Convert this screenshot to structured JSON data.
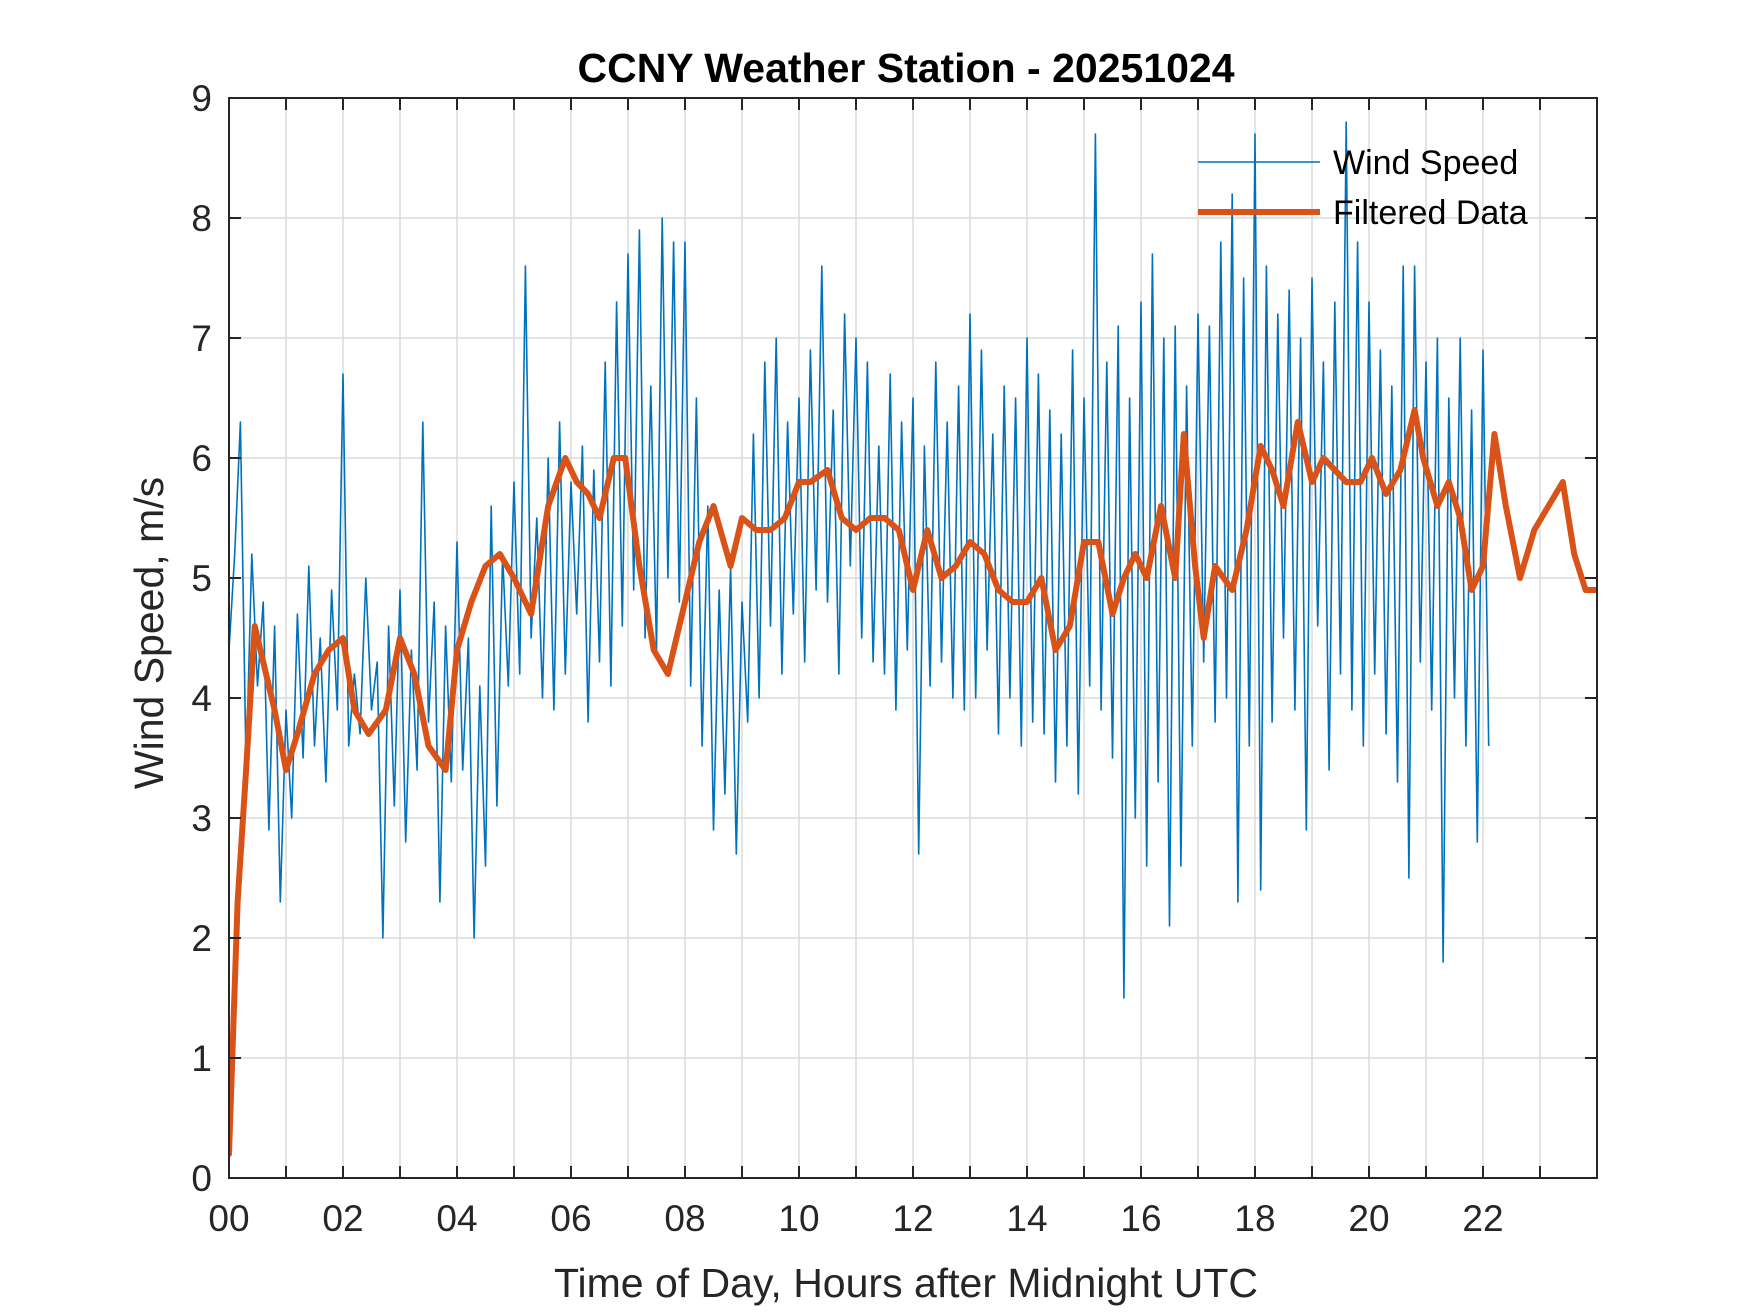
{
  "chart_data": {
    "type": "line",
    "title": "CCNY Weather Station - 20251024",
    "xlabel": "Time of Day, Hours after Midnight UTC",
    "ylabel": "Wind Speed, m/s",
    "xlim": [
      0,
      24
    ],
    "ylim": [
      0,
      9
    ],
    "x_ticks": [
      0,
      2,
      4,
      6,
      8,
      10,
      12,
      14,
      16,
      18,
      20,
      22
    ],
    "x_tick_labels": [
      "00",
      "02",
      "04",
      "06",
      "08",
      "10",
      "12",
      "14",
      "16",
      "18",
      "20",
      "22"
    ],
    "x_minor_grid": [
      1,
      3,
      5,
      7,
      9,
      11,
      13,
      15,
      17,
      19,
      21,
      23
    ],
    "y_ticks": [
      0,
      1,
      2,
      3,
      4,
      5,
      6,
      7,
      8,
      9
    ],
    "y_tick_labels": [
      "0",
      "1",
      "2",
      "3",
      "4",
      "5",
      "6",
      "7",
      "8",
      "9"
    ],
    "grid": true,
    "legend_position": "top-right",
    "series": [
      {
        "name": "Wind Speed",
        "color": "#0072BD",
        "x_start": 0,
        "x_step": 0.1,
        "values": [
          4.4,
          5.2,
          6.3,
          3.4,
          5.2,
          4.1,
          4.8,
          2.9,
          4.6,
          2.3,
          3.9,
          3.0,
          4.7,
          3.5,
          5.1,
          3.6,
          4.5,
          3.3,
          4.9,
          3.9,
          6.7,
          3.6,
          4.2,
          3.7,
          5.0,
          3.9,
          4.3,
          2.0,
          4.6,
          3.1,
          4.9,
          2.8,
          4.4,
          3.4,
          6.3,
          3.8,
          4.8,
          2.3,
          4.6,
          3.3,
          5.3,
          3.4,
          4.5,
          2.0,
          4.1,
          2.6,
          5.6,
          3.1,
          5.2,
          4.1,
          5.8,
          4.2,
          7.6,
          4.5,
          5.5,
          4.0,
          6.0,
          3.9,
          6.3,
          4.2,
          5.8,
          4.7,
          6.1,
          3.8,
          5.9,
          4.3,
          6.8,
          4.1,
          7.3,
          4.6,
          7.7,
          4.9,
          7.9,
          4.5,
          6.6,
          4.4,
          8.0,
          5.0,
          7.8,
          4.8,
          7.8,
          4.1,
          6.5,
          3.6,
          5.6,
          2.9,
          4.9,
          3.2,
          5.1,
          2.7,
          4.8,
          3.8,
          6.2,
          4.0,
          6.8,
          4.6,
          7.0,
          4.2,
          6.3,
          4.7,
          6.5,
          4.3,
          6.9,
          4.9,
          7.6,
          4.8,
          6.4,
          4.2,
          7.2,
          5.1,
          7.0,
          4.5,
          6.8,
          4.3,
          6.1,
          4.2,
          6.7,
          3.9,
          6.3,
          4.4,
          6.5,
          2.7,
          6.1,
          4.1,
          6.8,
          4.3,
          6.3,
          4.0,
          6.6,
          3.9,
          7.2,
          4.0,
          6.9,
          4.4,
          6.2,
          3.7,
          6.6,
          4.0,
          6.5,
          3.6,
          7.0,
          3.8,
          6.7,
          3.7,
          6.4,
          3.3,
          6.2,
          3.6,
          6.9,
          3.2,
          6.5,
          4.1,
          8.7,
          3.9,
          6.8,
          3.5,
          7.1,
          1.5,
          6.5,
          3.0,
          7.3,
          2.6,
          7.7,
          3.3,
          7.0,
          2.1,
          7.1,
          2.6,
          6.6,
          3.6,
          7.2,
          4.3,
          7.1,
          3.8,
          7.8,
          4.0,
          8.2,
          2.3,
          7.5,
          3.6,
          8.7,
          2.4,
          7.6,
          3.8,
          7.2,
          4.5,
          7.4,
          3.9,
          7.0,
          2.9,
          7.5,
          4.6,
          6.8,
          3.4,
          7.3,
          4.2,
          8.8,
          3.9,
          7.8,
          3.6,
          7.3,
          4.2,
          6.9,
          3.7,
          6.6,
          3.3,
          7.6,
          2.5,
          7.6,
          4.3,
          6.8,
          3.9,
          7.0,
          1.8,
          6.5,
          4.0,
          7.0,
          3.6,
          6.4,
          2.8,
          6.9,
          3.6
        ]
      },
      {
        "name": "Filtered Data",
        "color": "#D95319",
        "x": [
          0,
          0.15,
          0.3,
          0.45,
          0.6,
          0.8,
          1.0,
          1.2,
          1.5,
          1.75,
          2.0,
          2.2,
          2.45,
          2.75,
          3.0,
          3.25,
          3.5,
          3.65,
          3.8,
          4.0,
          4.25,
          4.5,
          4.75,
          5.0,
          5.3,
          5.6,
          5.9,
          6.1,
          6.3,
          6.5,
          6.75,
          6.95,
          7.2,
          7.45,
          7.7,
          8.0,
          8.25,
          8.5,
          8.8,
          9.0,
          9.25,
          9.5,
          9.75,
          10.0,
          10.2,
          10.5,
          10.75,
          11.0,
          11.25,
          11.5,
          11.75,
          12.0,
          12.25,
          12.5,
          12.75,
          13.0,
          13.25,
          13.5,
          13.75,
          14.0,
          14.25,
          14.5,
          14.75,
          15.0,
          15.25,
          15.5,
          15.7,
          15.9,
          16.1,
          16.35,
          16.6,
          16.75,
          16.95,
          17.1,
          17.3,
          17.6,
          17.85,
          18.1,
          18.3,
          18.5,
          18.75,
          19.0,
          19.2,
          19.4,
          19.6,
          19.85,
          20.05,
          20.3,
          20.55,
          20.8,
          20.95,
          21.2,
          21.4,
          21.6,
          21.8,
          22.0,
          22.2,
          22.4,
          22.65,
          22.9,
          23.15,
          23.4,
          23.6,
          23.8,
          24.0
        ],
        "values": [
          0.2,
          2.3,
          3.4,
          4.6,
          4.3,
          3.9,
          3.4,
          3.7,
          4.2,
          4.4,
          4.5,
          3.9,
          3.7,
          3.9,
          4.5,
          4.2,
          3.6,
          3.5,
          3.4,
          4.4,
          4.8,
          5.1,
          5.2,
          5.0,
          4.7,
          5.6,
          6.0,
          5.8,
          5.7,
          5.5,
          6.0,
          6.0,
          5.1,
          4.4,
          4.2,
          4.8,
          5.3,
          5.6,
          5.1,
          5.5,
          5.4,
          5.4,
          5.5,
          5.8,
          5.8,
          5.9,
          5.5,
          5.4,
          5.5,
          5.5,
          5.4,
          4.9,
          5.4,
          5.0,
          5.1,
          5.3,
          5.2,
          4.9,
          4.8,
          4.8,
          5.0,
          4.4,
          4.6,
          5.3,
          5.3,
          4.7,
          5.0,
          5.2,
          5.0,
          5.6,
          5.0,
          6.2,
          5.1,
          4.5,
          5.1,
          4.9,
          5.4,
          6.1,
          5.9,
          5.6,
          6.3,
          5.8,
          6.0,
          5.9,
          5.8,
          5.8,
          6.0,
          5.7,
          5.9,
          6.4,
          6.0,
          5.6,
          5.8,
          5.5,
          4.9,
          5.1,
          6.2,
          5.6,
          5.0,
          5.4,
          5.6,
          5.8,
          5.2,
          4.9,
          4.9
        ]
      }
    ]
  }
}
